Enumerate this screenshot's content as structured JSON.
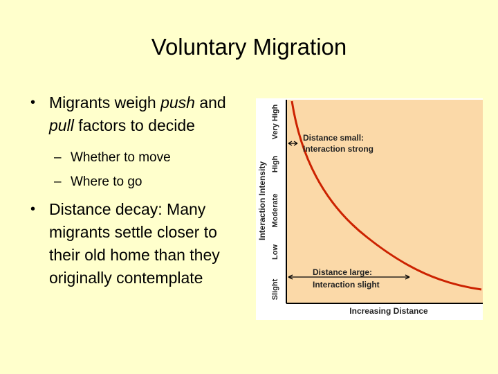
{
  "slide": {
    "title": "Voluntary Migration",
    "bullets": [
      {
        "text_before": "Migrants weigh ",
        "em1": "push",
        "text_mid": " and ",
        "em2": "pull",
        "text_after": " factors to decide",
        "subitems": [
          "Whether to move",
          "Where to go"
        ]
      },
      {
        "text": "Distance decay: Many migrants settle closer to their old home than they originally contemplate"
      }
    ]
  },
  "chart_data": {
    "type": "line",
    "xlabel": "Increasing Distance",
    "ylabel": "Interaction Intensity",
    "y_tick_labels": [
      "Slight",
      "Low",
      "Moderate",
      "High",
      "Very High"
    ],
    "annotations": [
      {
        "text": [
          "Distance small:",
          "Interaction strong"
        ]
      },
      {
        "text": [
          "Distance large:",
          "Interaction slight"
        ]
      }
    ],
    "series": [
      {
        "curve": "distance-decay",
        "color": "#cc2200"
      }
    ],
    "colors": {
      "plot_bg": "#fbd9a8",
      "curve": "#cc2200",
      "frame": "#000000"
    }
  }
}
